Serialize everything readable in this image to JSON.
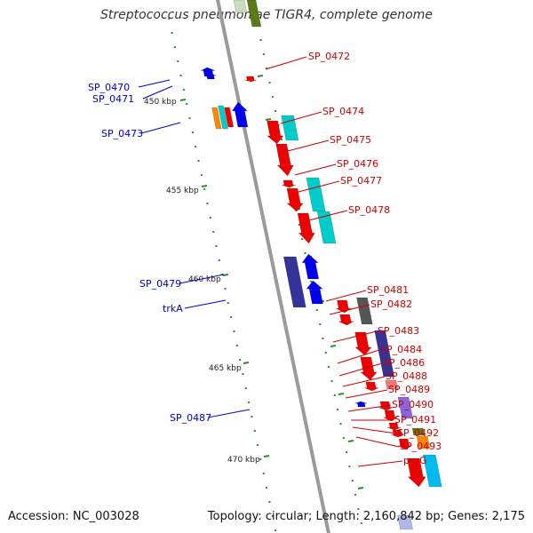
{
  "title": "Streptococcus pneumoniae TIGR4, complete genome",
  "footer": {
    "accession": "Accession: NC_003028",
    "summary": "Topology: circular; Length: 2,160,842 bp; Genes: 2,175"
  },
  "colors": {
    "backbone": "#9a9a9a",
    "tick": "#2d8a2d",
    "forward_label": "#cc0000",
    "reverse_label": "#0000cc",
    "red": "#ee0000",
    "blue": "#0000ee",
    "cyan": "#00cccc",
    "navy": "#333399",
    "gray": "#555555",
    "pink": "#ee7777",
    "violet": "#8866dd",
    "olive": "#5a7a1a",
    "orange": "#ff8800",
    "sky": "#00bbee"
  },
  "scale_labels": [
    {
      "text": "450 kbp"
    },
    {
      "text": "455 kbp"
    },
    {
      "text": "460 kbp"
    },
    {
      "text": "465 kbp"
    },
    {
      "text": "470 kbp"
    }
  ],
  "forward_labels": [
    {
      "text": "SP_0472"
    },
    {
      "text": "SP_0474"
    },
    {
      "text": "SP_0475"
    },
    {
      "text": "SP_0476"
    },
    {
      "text": "SP_0477"
    },
    {
      "text": "SP_0478"
    },
    {
      "text": "SP_0481"
    },
    {
      "text": "SP_0482"
    },
    {
      "text": "SP_0483"
    },
    {
      "text": "SP_0484"
    },
    {
      "text": "SP_0486"
    },
    {
      "text": "SP_0488"
    },
    {
      "text": "SP_0489"
    },
    {
      "text": "SP_0490"
    },
    {
      "text": "SP_0491"
    },
    {
      "text": "SP_0492"
    },
    {
      "text": "SP_0493"
    },
    {
      "text": "pyrG"
    }
  ],
  "reverse_labels": [
    {
      "text": "SP_0470"
    },
    {
      "text": "SP_0471"
    },
    {
      "text": "SP_0473"
    },
    {
      "text": "SP_0479"
    },
    {
      "text": "trkA"
    },
    {
      "text": "SP_0487"
    }
  ]
}
